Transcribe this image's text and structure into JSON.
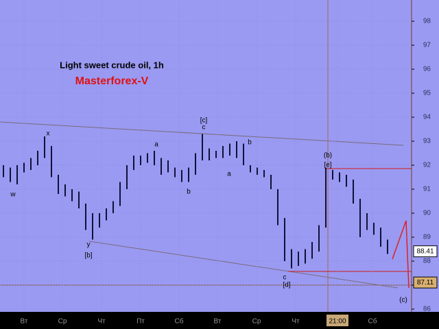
{
  "chart_data": {
    "type": "ohlc",
    "title": "Light sweet crude oil, 1h",
    "subtitle": "Masterforex-V",
    "color": "#10103a",
    "ylim": [
      85.886,
      98.886
    ],
    "yticks": [
      86,
      87,
      88,
      89,
      90,
      91,
      92,
      93,
      94,
      95,
      96,
      97,
      98
    ],
    "xlim": [
      -0.5,
      59.5
    ],
    "xticks": [
      {
        "value": 3,
        "label": "Вт"
      },
      {
        "value": 8.6,
        "label": "Ср"
      },
      {
        "value": 14.3,
        "label": "Чт"
      },
      {
        "value": 20,
        "label": "Пт"
      },
      {
        "value": 25.6,
        "label": "Сб"
      },
      {
        "value": 31.2,
        "label": "Вт"
      },
      {
        "value": 36.9,
        "label": "Ср"
      },
      {
        "value": 42.6,
        "label": "Чт"
      },
      {
        "value": 48.7,
        "label": "21:00"
      },
      {
        "value": 53.8,
        "label": "Сб"
      }
    ],
    "high": [
      92.0,
      91.9,
      92.0,
      92.1,
      92.3,
      92.6,
      93.2,
      92.8,
      91.6,
      91.2,
      91.0,
      90.9,
      90.4,
      90.0,
      90.0,
      90.2,
      90.5,
      91.3,
      92.0,
      92.4,
      92.4,
      92.5,
      92.6,
      92.3,
      92.2,
      91.9,
      91.8,
      91.9,
      92.5,
      93.3,
      92.7,
      92.6,
      92.8,
      92.9,
      93.0,
      92.9,
      92.0,
      91.9,
      91.8,
      91.6,
      91.0,
      89.8,
      88.5,
      88.4,
      88.5,
      88.8,
      89.5,
      91.9,
      91.8,
      91.7,
      91.6,
      91.4,
      90.6,
      90.0,
      89.6,
      89.4,
      88.9
    ],
    "low": [
      91.5,
      91.3,
      91.2,
      91.7,
      91.8,
      92.0,
      92.3,
      91.5,
      90.8,
      90.7,
      90.5,
      90.2,
      89.3,
      88.9,
      89.4,
      89.7,
      90.0,
      90.3,
      91.0,
      91.8,
      92.0,
      92.1,
      92.0,
      91.6,
      91.7,
      91.5,
      91.3,
      91.3,
      91.6,
      92.2,
      92.2,
      92.3,
      92.3,
      92.4,
      92.3,
      92.0,
      91.7,
      91.6,
      91.5,
      91.0,
      89.5,
      88.0,
      87.7,
      87.8,
      87.9,
      88.1,
      88.4,
      89.4,
      91.4,
      91.3,
      91.1,
      90.4,
      89.0,
      89.3,
      89.1,
      88.6,
      88.3
    ],
    "price_markers": [
      88.41,
      87.11
    ],
    "annotations": [
      "w",
      "x",
      "y",
      "[b]",
      "a",
      "b",
      "[c]",
      "c",
      "a",
      "b",
      "(b)",
      "[e]",
      "c",
      "[d]",
      "(c)"
    ],
    "grid": true
  }
}
